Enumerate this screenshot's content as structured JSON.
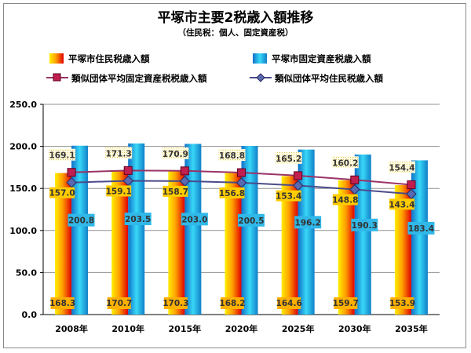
{
  "chart_data": {
    "type": "bar",
    "title": "平塚市主要2税歳入額推移",
    "subtitle": "（住民税：個人、固定資産税）",
    "categories": [
      "2008年",
      "2010年",
      "2015年",
      "2020年",
      "2025年",
      "2030年",
      "2035年"
    ],
    "series": [
      {
        "name": "平塚市住民税歳入額",
        "kind": "bar",
        "values": [
          168.3,
          170.7,
          170.3,
          168.2,
          164.6,
          159.7,
          153.9
        ],
        "labels": [
          "168.3",
          "170.7",
          "170.3",
          "168.2",
          "164.6",
          "159.7",
          "153.9"
        ]
      },
      {
        "name": "平塚市固定資産税歳入額",
        "kind": "bar",
        "values": [
          200.8,
          203.5,
          203.0,
          200.5,
          196.2,
          190.3,
          183.4
        ],
        "labels": [
          "200.8",
          "203.5",
          "203.0",
          "200.5",
          "196.2",
          "190.3",
          "183.4"
        ]
      },
      {
        "name": "類似団体平均固定資産税税歳入額",
        "kind": "line",
        "marker": "square",
        "values": [
          169.1,
          171.3,
          170.9,
          168.8,
          165.2,
          160.2,
          154.4
        ],
        "labels": [
          "169.1",
          "171.3",
          "170.9",
          "168.8",
          "165.2",
          "160.2",
          "154.4"
        ]
      },
      {
        "name": "類似団体平均住民税歳入額",
        "kind": "line",
        "marker": "diamond",
        "values": [
          157.0,
          159.1,
          158.7,
          156.8,
          153.4,
          148.8,
          143.4
        ],
        "labels": [
          "157.0",
          "159.1",
          "158.7",
          "156.8",
          "153.4",
          "148.8",
          "143.4"
        ]
      }
    ],
    "ylim": [
      0,
      250
    ],
    "yticks": [
      "0.0",
      "50.0",
      "100.0",
      "150.0",
      "200.0",
      "250.0"
    ],
    "grid": true,
    "legend": "top",
    "colors": {
      "bar1": "#ff2200",
      "bar2": "#1aa8e0",
      "line_fixed": "#993366",
      "line_resident": "#4b4b8c"
    }
  }
}
